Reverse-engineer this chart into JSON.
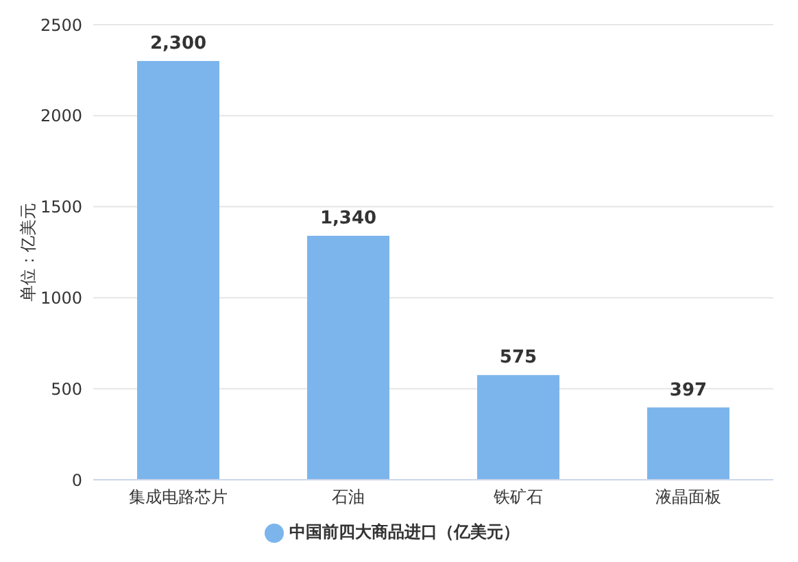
{
  "chart_data": {
    "type": "bar",
    "ylabel": "单位：亿美元",
    "categories": [
      "集成电路芯片",
      "石油",
      "铁矿石",
      "液晶面板"
    ],
    "series": [
      {
        "name": "中国前四大商品进口（亿美元）",
        "color": "#7cb5ec",
        "values": [
          2300,
          1340,
          575,
          397
        ],
        "value_labels": [
          "2,300",
          "1,340",
          "575",
          "397"
        ]
      }
    ],
    "ylim": [
      0,
      2500
    ],
    "yticks": [
      0,
      500,
      1000,
      1500,
      2000,
      2500
    ],
    "grid": "y",
    "legend": "bottom"
  }
}
